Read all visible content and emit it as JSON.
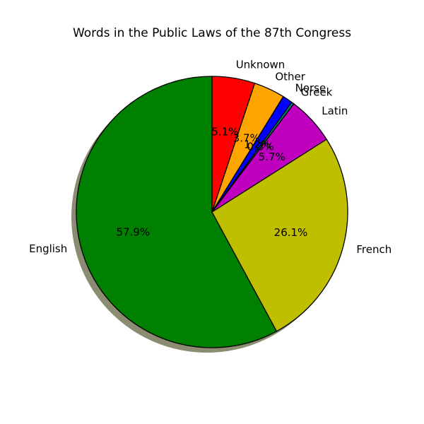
{
  "chart_data": {
    "type": "pie",
    "title": "Words in the Public Laws of the 87th Congress",
    "categories": [
      "English",
      "French",
      "Latin",
      "Greek",
      "Norse",
      "Other",
      "Unknown"
    ],
    "values": [
      57.9,
      26.1,
      5.7,
      0.3,
      1.2,
      3.7,
      5.1
    ],
    "value_labels": [
      "57.9%",
      "26.1%",
      "5.7%",
      "0.3%",
      "1.2%",
      "3.7%",
      "5.1%"
    ],
    "colors": [
      "#008000",
      "#bfbf00",
      "#bf00bf",
      "#008080",
      "#0000ff",
      "#ffa500",
      "#ff0000"
    ],
    "start_angle_deg": 90,
    "direction": "counterclockwise",
    "shadow": true,
    "edge_color": "#000000",
    "shadow_color": "#8c8c73"
  }
}
